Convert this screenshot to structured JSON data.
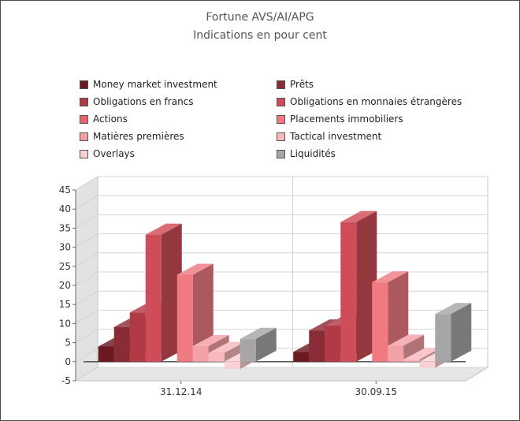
{
  "chart_data": {
    "type": "bar",
    "title": "Fortune AVS/AI/APG",
    "subtitle": "Indications en pour cent",
    "categories": [
      "31.12.14",
      "30.09.15"
    ],
    "ylim": [
      -5,
      45
    ],
    "yticks": [
      45,
      40,
      35,
      30,
      25,
      20,
      15,
      10,
      5,
      0,
      -5
    ],
    "grid": true,
    "legend_position": "top",
    "three_d": true,
    "series": [
      {
        "name": "Money market investment",
        "color": "#6b1a22",
        "values": [
          4.0,
          2.6
        ]
      },
      {
        "name": "Prêts",
        "color": "#8a2c35",
        "values": [
          9.1,
          8.2
        ]
      },
      {
        "name": "Obligations en francs",
        "color": "#b23a46",
        "values": [
          12.9,
          9.4
        ]
      },
      {
        "name": "Obligations en monnaies étrangères",
        "color": "#cf4d58",
        "values": [
          33.3,
          36.6
        ]
      },
      {
        "name": "Actions",
        "color": "#e8656e",
        "values": [
          0,
          0
        ]
      },
      {
        "name": "Placements immobiliers",
        "color": "#ef7a82",
        "values": [
          22.8,
          20.8
        ]
      },
      {
        "name": "Matières premières",
        "color": "#f3a0a6",
        "values": [
          4.1,
          4.2
        ]
      },
      {
        "name": "Tactical investment",
        "color": "#f7b9be",
        "values": [
          2.3,
          0.6
        ]
      },
      {
        "name": "Overlays",
        "color": "#f9d0d3",
        "values": [
          -1.9,
          -1.6
        ]
      },
      {
        "name": "Liquidités",
        "color": "#a6a6a6",
        "values": [
          6.0,
          12.5
        ]
      }
    ]
  }
}
